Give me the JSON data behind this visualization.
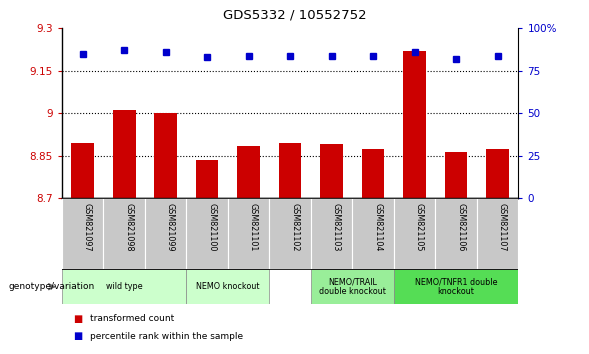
{
  "title": "GDS5332 / 10552752",
  "samples": [
    "GSM821097",
    "GSM821098",
    "GSM821099",
    "GSM821100",
    "GSM821101",
    "GSM821102",
    "GSM821103",
    "GSM821104",
    "GSM821105",
    "GSM821106",
    "GSM821107"
  ],
  "bar_values": [
    8.895,
    9.01,
    9.0,
    8.835,
    8.885,
    8.895,
    8.89,
    8.875,
    9.22,
    8.865,
    8.875
  ],
  "percentile_values": [
    85,
    87,
    86,
    83,
    84,
    84,
    84,
    84,
    86,
    82,
    84
  ],
  "bar_color": "#cc0000",
  "dot_color": "#0000cc",
  "ylim_left": [
    8.7,
    9.3
  ],
  "ylim_right": [
    0,
    100
  ],
  "yticks_left": [
    8.7,
    8.85,
    9.0,
    9.15,
    9.3
  ],
  "yticks_right": [
    0,
    25,
    50,
    75,
    100
  ],
  "ytick_labels_left": [
    "8.7",
    "8.85",
    "9",
    "9.15",
    "9.3"
  ],
  "ytick_labels_right": [
    "0",
    "25",
    "50",
    "75",
    "100%"
  ],
  "hlines": [
    8.85,
    9.0,
    9.15
  ],
  "group_configs": [
    {
      "start": 0,
      "end": 2,
      "label": "wild type",
      "color": "#ccffcc"
    },
    {
      "start": 3,
      "end": 4,
      "label": "NEMO knockout",
      "color": "#ccffcc"
    },
    {
      "start": 6,
      "end": 7,
      "label": "NEMO/TRAIL\ndouble knockout",
      "color": "#99ee99"
    },
    {
      "start": 8,
      "end": 10,
      "label": "NEMO/TNFR1 double\nknockout",
      "color": "#55dd55"
    }
  ],
  "legend_items": [
    {
      "label": "transformed count",
      "color": "#cc0000"
    },
    {
      "label": "percentile rank within the sample",
      "color": "#0000cc"
    }
  ],
  "genotype_label": "genotype/variation",
  "tick_area_color": "#c8c8c8",
  "bar_width": 0.55
}
